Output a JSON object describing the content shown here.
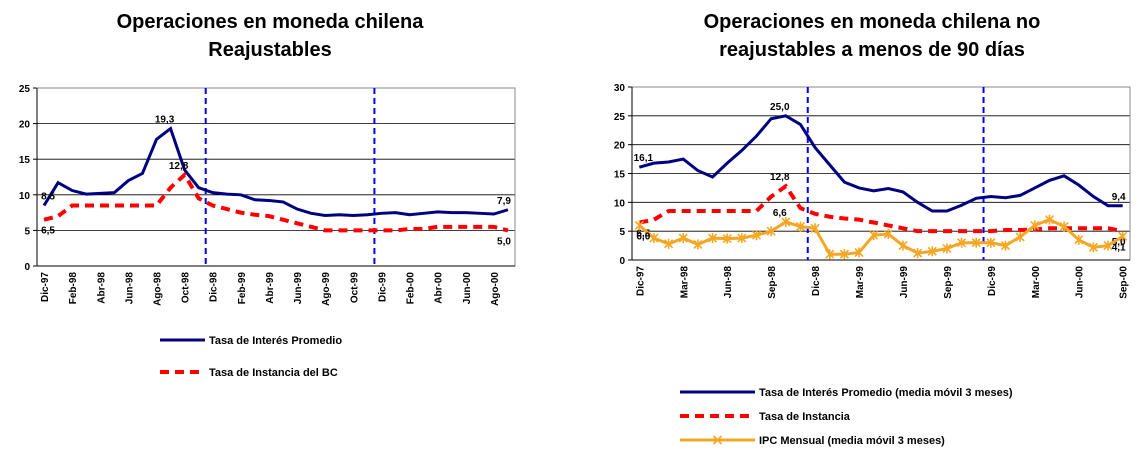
{
  "chart_data": [
    {
      "type": "line",
      "title": [
        "Operaciones en moneda chilena",
        "Reajustables"
      ],
      "categories": [
        "Dic-97",
        null,
        "Feb-98",
        null,
        "Abr-98",
        null,
        "Jun-98",
        null,
        "Ago-98",
        null,
        "Oct-98",
        null,
        "Dic-98",
        null,
        "Feb-99",
        null,
        "Abr-99",
        null,
        "Jun-99",
        null,
        "Ago-99",
        null,
        "Oct-99",
        null,
        "Dic-99",
        null,
        "Feb-00",
        null,
        "Abr-00",
        null,
        "Jun-00",
        null,
        "Ago-00",
        null
      ],
      "ylim": [
        0,
        25
      ],
      "yticks": [
        0,
        5,
        10,
        15,
        20,
        25
      ],
      "grid": true,
      "vertical_lines_at": [
        "Dic-98",
        "Dic-99"
      ],
      "vertical_line_color": "#0000ff",
      "series": [
        {
          "name": "Tasa de Interés Promedio",
          "color": "#000080",
          "style": "solid",
          "values": [
            8.5,
            11.7,
            10.6,
            10.1,
            10.2,
            10.3,
            12.0,
            13.0,
            17.8,
            19.3,
            13.5,
            11.0,
            10.3,
            10.1,
            10.0,
            9.3,
            9.2,
            9.0,
            8.0,
            7.4,
            7.1,
            7.2,
            7.1,
            7.2,
            7.4,
            7.5,
            7.2,
            7.4,
            7.6,
            7.5,
            7.5,
            7.4,
            7.3,
            7.9
          ],
          "value_labels": [
            "8,5",
            null,
            null,
            null,
            null,
            null,
            null,
            null,
            null,
            "19,3",
            null,
            null,
            null,
            null,
            null,
            null,
            null,
            null,
            null,
            null,
            null,
            null,
            null,
            null,
            null,
            null,
            null,
            null,
            null,
            null,
            null,
            null,
            null,
            "7,9"
          ]
        },
        {
          "name": "Tasa de Instancia del BC",
          "color": "#ff0000",
          "style": "dashed",
          "values": [
            6.5,
            7.0,
            8.5,
            8.5,
            8.5,
            8.5,
            8.5,
            8.5,
            8.5,
            11.0,
            12.8,
            9.5,
            8.5,
            8.0,
            7.5,
            7.2,
            7.0,
            6.5,
            6.0,
            5.5,
            5.0,
            5.0,
            5.0,
            5.0,
            5.0,
            5.0,
            5.2,
            5.2,
            5.5,
            5.5,
            5.5,
            5.5,
            5.5,
            5.0
          ],
          "value_labels": [
            "6,5",
            null,
            null,
            null,
            null,
            null,
            null,
            null,
            null,
            null,
            "12,8",
            null,
            null,
            null,
            null,
            null,
            null,
            null,
            null,
            null,
            null,
            null,
            null,
            null,
            null,
            null,
            null,
            null,
            null,
            null,
            null,
            null,
            null,
            "5,0"
          ]
        }
      ]
    },
    {
      "type": "line",
      "title": [
        "Operaciones en moneda chilena no",
        "reajustables a menos de 90 días"
      ],
      "categories": [
        "Dic-97",
        null,
        null,
        "Mar-98",
        null,
        null,
        "Jun-98",
        null,
        null,
        "Sep-98",
        null,
        null,
        "Dic-98",
        null,
        null,
        "Mar-99",
        null,
        null,
        "Jun-99",
        null,
        null,
        "Sep-99",
        null,
        null,
        "Dic-99",
        null,
        null,
        "Mar-00",
        null,
        null,
        "Jun-00",
        null,
        null,
        "Sep-00"
      ],
      "ylim": [
        0,
        30
      ],
      "yticks": [
        0,
        5,
        10,
        15,
        20,
        25,
        30
      ],
      "grid": true,
      "vertical_lines_at": [
        "Dic-98",
        "Dic-99"
      ],
      "vertical_line_color": "#0000ff",
      "series": [
        {
          "name": "Tasa de Interés Promedio (media móvil 3 meses)",
          "color": "#000080",
          "style": "solid",
          "values": [
            16.1,
            16.8,
            17.0,
            17.5,
            15.5,
            14.4,
            16.8,
            19.0,
            21.5,
            24.5,
            25.0,
            23.5,
            19.5,
            16.5,
            13.5,
            12.5,
            12.0,
            12.4,
            11.8,
            10.0,
            8.5,
            8.5,
            9.5,
            10.7,
            11.0,
            10.8,
            11.2,
            12.5,
            13.8,
            14.6,
            13.0,
            11.0,
            9.4,
            9.4
          ],
          "value_labels": [
            "16,1",
            null,
            null,
            null,
            null,
            null,
            null,
            null,
            null,
            null,
            "25,0",
            null,
            null,
            null,
            null,
            null,
            null,
            null,
            null,
            null,
            null,
            null,
            null,
            null,
            null,
            null,
            null,
            null,
            null,
            null,
            null,
            null,
            null,
            "9,4"
          ]
        },
        {
          "name": "Tasa de Instancia",
          "color": "#ff0000",
          "style": "dashed",
          "values": [
            6.5,
            7.0,
            8.5,
            8.5,
            8.5,
            8.5,
            8.5,
            8.5,
            8.5,
            11.0,
            12.8,
            9.0,
            8.0,
            7.5,
            7.2,
            7.0,
            6.5,
            6.0,
            5.5,
            5.0,
            5.0,
            5.0,
            5.0,
            5.0,
            5.0,
            5.2,
            5.2,
            5.3,
            5.5,
            5.5,
            5.5,
            5.5,
            5.5,
            5.0
          ],
          "value_labels": [
            "6,5",
            null,
            null,
            null,
            null,
            null,
            null,
            null,
            null,
            null,
            "12,8",
            null,
            null,
            null,
            null,
            null,
            null,
            null,
            null,
            null,
            null,
            null,
            null,
            null,
            null,
            null,
            null,
            null,
            null,
            null,
            null,
            null,
            null,
            "5,0"
          ]
        },
        {
          "name": "IPC Mensual (media móvil 3 meses)",
          "color": "#f5a623",
          "style": "marker",
          "values": [
            6.0,
            3.8,
            2.8,
            3.8,
            2.7,
            3.8,
            3.7,
            3.8,
            4.3,
            5.0,
            6.6,
            5.8,
            5.5,
            1.0,
            1.0,
            1.3,
            4.3,
            4.5,
            2.5,
            1.2,
            1.5,
            2.0,
            3.0,
            3.0,
            3.0,
            2.5,
            4.0,
            6.0,
            7.0,
            5.8,
            3.5,
            2.2,
            2.5,
            4.1
          ],
          "value_labels": [
            "6,0",
            null,
            null,
            null,
            null,
            null,
            null,
            null,
            null,
            null,
            "6,6",
            null,
            null,
            null,
            null,
            null,
            null,
            null,
            null,
            null,
            null,
            null,
            null,
            null,
            null,
            null,
            null,
            null,
            null,
            null,
            null,
            null,
            null,
            "4,1"
          ]
        }
      ]
    }
  ]
}
